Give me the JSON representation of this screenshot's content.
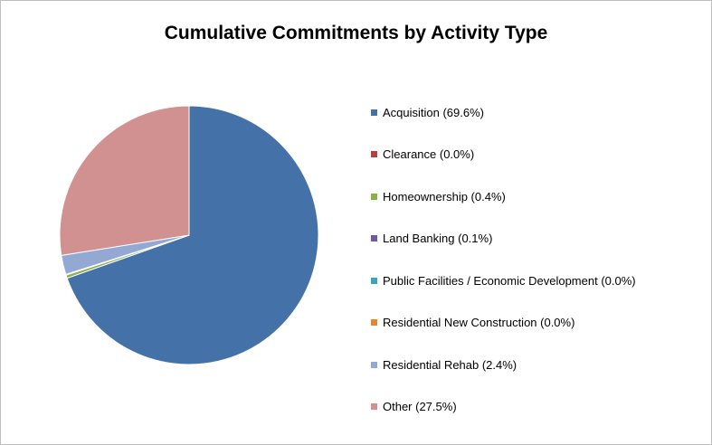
{
  "chart_data": {
    "type": "pie",
    "title": "Cumulative Commitments by Activity Type",
    "legend_position": "right",
    "slices": [
      {
        "label": "Acquisition (69.6%)",
        "value": 69.6,
        "color": "#4472a8"
      },
      {
        "label": "Clearance (0.0%)",
        "value": 0.0,
        "color": "#b3403e"
      },
      {
        "label": "Homeownership (0.4%)",
        "value": 0.4,
        "color": "#8ab04b"
      },
      {
        "label": "Land Banking (0.1%)",
        "value": 0.1,
        "color": "#7159a0"
      },
      {
        "label": "Public Facilities / Economic Development (0.0%)",
        "value": 0.0,
        "color": "#3aa4bd"
      },
      {
        "label": "Residential New Construction (0.0%)",
        "value": 0.0,
        "color": "#e8872d"
      },
      {
        "label": "Residential Rehab (2.4%)",
        "value": 2.4,
        "color": "#93a9d3"
      },
      {
        "label": "Other (27.5%)",
        "value": 27.5,
        "color": "#d09190"
      }
    ]
  }
}
